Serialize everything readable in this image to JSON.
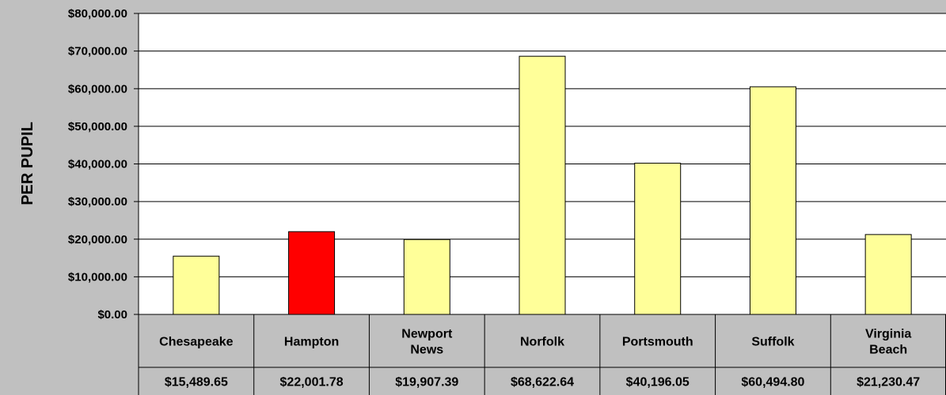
{
  "chart_data": {
    "type": "bar",
    "title": "",
    "xlabel": "",
    "ylabel": "PER PUPIL",
    "ylim": [
      0,
      80000
    ],
    "yticks": [
      "$0.00",
      "$10,000.00",
      "$20,000.00",
      "$30,000.00",
      "$40,000.00",
      "$50,000.00",
      "$60,000.00",
      "$70,000.00",
      "$80,000.00"
    ],
    "categories": [
      [
        "Chesapeake"
      ],
      [
        "Hampton"
      ],
      [
        "Newport",
        "News"
      ],
      [
        "Norfolk"
      ],
      [
        "Portsmouth"
      ],
      [
        "Suffolk"
      ],
      [
        "Virginia",
        "Beach"
      ]
    ],
    "values": [
      15489.65,
      22001.78,
      19907.39,
      68622.64,
      40196.05,
      60494.8,
      21230.47
    ],
    "value_labels": [
      "$15,489.65",
      "$22,001.78",
      "$19,907.39",
      "$68,622.64",
      "$40,196.05",
      "$60,494.80",
      "$21,230.47"
    ],
    "bar_colors": [
      "#ffff99",
      "#ff0000",
      "#ffff99",
      "#ffff99",
      "#ffff99",
      "#ffff99",
      "#ffff99"
    ],
    "grid": true,
    "legend": "none",
    "data_table": true
  },
  "colors": {
    "background": "#c0c0c0",
    "plot_area": "#ffffff",
    "default_bar": "#ffff99",
    "highlight_bar": "#ff0000"
  }
}
